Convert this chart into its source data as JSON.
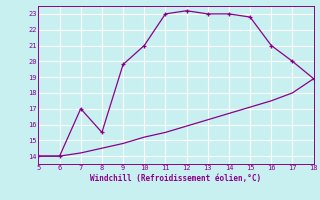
{
  "xlabel": "Windchill (Refroidissement éolien,°C)",
  "line_color": "#8B008B",
  "bg_color": "#c8f0f0",
  "grid_color": "#ffffff",
  "x_upper": [
    5,
    6,
    7,
    8,
    9,
    10,
    11,
    12,
    13,
    14,
    15,
    16,
    17,
    18
  ],
  "y_upper": [
    14,
    14,
    17,
    15.5,
    19.8,
    21,
    23.0,
    23.2,
    23.0,
    23.0,
    22.8,
    21,
    20,
    18.9
  ],
  "x_lower": [
    5,
    6,
    7,
    8,
    9,
    10,
    11,
    12,
    13,
    14,
    15,
    16,
    17,
    18
  ],
  "y_lower": [
    14,
    14,
    14.2,
    14.5,
    14.8,
    15.2,
    15.5,
    15.9,
    16.3,
    16.7,
    17.1,
    17.5,
    18.0,
    18.9
  ],
  "xlim": [
    5,
    18
  ],
  "ylim": [
    13.5,
    23.5
  ],
  "xticks": [
    5,
    6,
    7,
    8,
    9,
    10,
    11,
    12,
    13,
    14,
    15,
    16,
    17,
    18
  ],
  "yticks": [
    14,
    15,
    16,
    17,
    18,
    19,
    20,
    21,
    22,
    23
  ],
  "figsize": [
    3.2,
    2.0
  ],
  "dpi": 100
}
